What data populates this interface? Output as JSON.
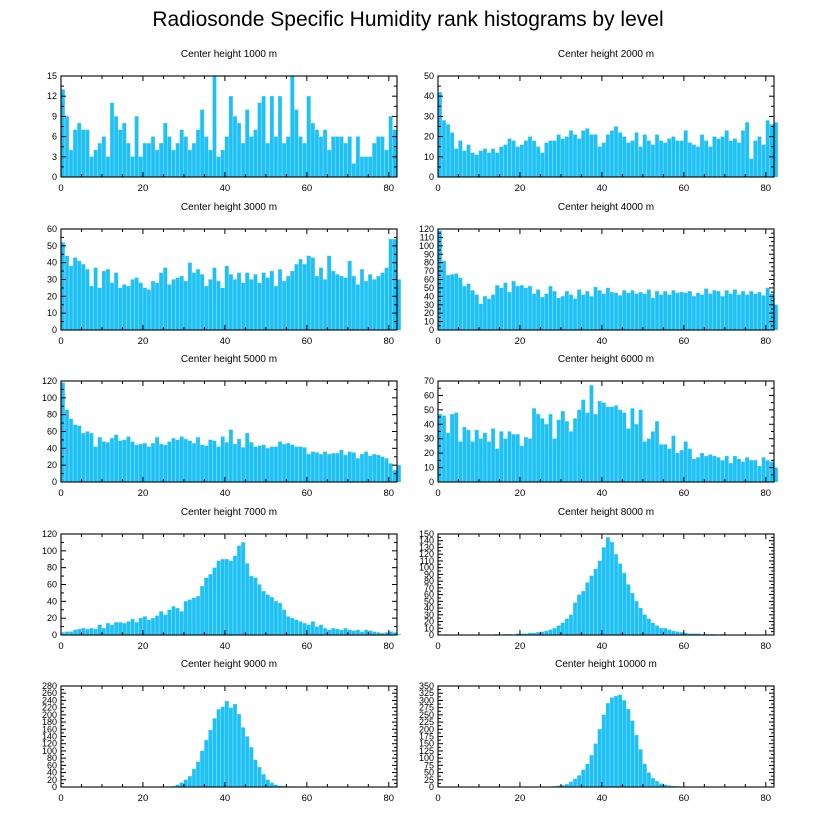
{
  "title": "Radiosonde Specific Humidity rank histograms by level",
  "colors": {
    "bar": "#1ec0f5",
    "bar_edge": "#5fd6fb",
    "axis": "#000000"
  },
  "chart_data": [
    {
      "type": "bar",
      "title": "Center height 1000 m",
      "xlim": [
        0,
        82
      ],
      "ylim": [
        0,
        15
      ],
      "xticks": [
        0,
        20,
        40,
        60,
        80
      ],
      "yticks": [
        0,
        3,
        6,
        9,
        12,
        15
      ],
      "values": [
        13,
        9,
        4,
        7,
        8,
        7,
        7,
        3,
        4,
        5,
        6,
        3,
        11,
        9,
        7,
        8,
        5,
        3,
        9,
        3,
        5,
        5,
        6,
        4,
        5,
        8,
        6,
        4,
        5,
        7,
        6,
        4,
        5,
        7,
        10,
        6,
        4,
        15,
        3,
        4,
        6,
        12,
        9,
        8,
        5,
        10,
        6,
        7,
        11,
        12,
        5,
        12,
        6,
        12,
        5,
        6,
        15,
        10,
        6,
        5,
        12,
        8,
        7,
        6,
        7,
        4,
        6,
        6,
        6,
        5,
        6,
        2,
        6,
        3,
        3,
        3,
        5,
        6,
        6,
        4,
        9,
        7
      ]
    },
    {
      "type": "bar",
      "title": "Center height 2000 m",
      "xlim": [
        0,
        82
      ],
      "ylim": [
        0,
        50
      ],
      "xticks": [
        0,
        20,
        40,
        60,
        80
      ],
      "yticks": [
        0,
        10,
        20,
        30,
        40,
        50
      ],
      "values": [
        42,
        28,
        26,
        22,
        14,
        18,
        13,
        16,
        12,
        11,
        13,
        14,
        12,
        14,
        12,
        15,
        16,
        19,
        18,
        15,
        16,
        18,
        20,
        18,
        15,
        12,
        17,
        18,
        18,
        21,
        19,
        20,
        23,
        21,
        19,
        23,
        24,
        21,
        21,
        15,
        17,
        21,
        23,
        25,
        22,
        20,
        17,
        18,
        22,
        15,
        21,
        18,
        16,
        21,
        18,
        17,
        19,
        20,
        18,
        18,
        23,
        17,
        16,
        15,
        21,
        18,
        15,
        20,
        19,
        20,
        23,
        18,
        19,
        17,
        23,
        27,
        9,
        18,
        20,
        16,
        28,
        26,
        27
      ]
    },
    {
      "type": "bar",
      "title": "Center height 3000 m",
      "xlim": [
        0,
        82
      ],
      "ylim": [
        0,
        60
      ],
      "xticks": [
        0,
        20,
        40,
        60,
        80
      ],
      "yticks": [
        0,
        10,
        20,
        30,
        40,
        50,
        60
      ],
      "values": [
        52,
        44,
        38,
        43,
        41,
        39,
        36,
        26,
        37,
        25,
        35,
        36,
        28,
        34,
        25,
        27,
        26,
        30,
        31,
        28,
        25,
        24,
        29,
        28,
        34,
        37,
        27,
        30,
        31,
        32,
        29,
        40,
        34,
        36,
        33,
        26,
        30,
        37,
        29,
        25,
        38,
        33,
        30,
        34,
        28,
        34,
        30,
        33,
        28,
        34,
        31,
        35,
        26,
        36,
        29,
        32,
        35,
        39,
        42,
        39,
        44,
        43,
        32,
        37,
        30,
        44,
        35,
        33,
        32,
        31,
        41,
        32,
        27,
        36,
        29,
        33,
        30,
        32,
        34,
        37,
        54,
        54,
        30
      ]
    },
    {
      "type": "bar",
      "title": "Center height 4000 m",
      "xlim": [
        0,
        82
      ],
      "ylim": [
        0,
        120
      ],
      "xticks": [
        0,
        20,
        40,
        60,
        80
      ],
      "yticks": [
        0,
        10,
        20,
        30,
        40,
        50,
        60,
        70,
        80,
        90,
        100,
        110,
        120
      ],
      "values": [
        118,
        82,
        65,
        66,
        67,
        62,
        52,
        55,
        47,
        42,
        31,
        40,
        37,
        42,
        53,
        50,
        56,
        45,
        58,
        52,
        53,
        50,
        52,
        43,
        48,
        39,
        43,
        52,
        46,
        38,
        40,
        46,
        42,
        37,
        48,
        42,
        46,
        40,
        51,
        47,
        43,
        50,
        45,
        44,
        41,
        47,
        44,
        47,
        43,
        45,
        43,
        48,
        38,
        46,
        42,
        46,
        42,
        47,
        44,
        45,
        44,
        46,
        40,
        44,
        42,
        49,
        43,
        47,
        46,
        40,
        47,
        43,
        48,
        42,
        46,
        42,
        46,
        43,
        45,
        41,
        50,
        43,
        30
      ]
    },
    {
      "type": "bar",
      "title": "Center height 5000 m",
      "xlim": [
        0,
        82
      ],
      "ylim": [
        0,
        120
      ],
      "xticks": [
        0,
        20,
        40,
        60,
        80
      ],
      "yticks": [
        0,
        20,
        40,
        60,
        80,
        100,
        120
      ],
      "values": [
        118,
        86,
        75,
        68,
        67,
        58,
        60,
        58,
        42,
        53,
        48,
        47,
        52,
        56,
        49,
        50,
        54,
        48,
        44,
        45,
        46,
        42,
        46,
        53,
        45,
        44,
        48,
        52,
        50,
        54,
        51,
        49,
        46,
        53,
        44,
        43,
        50,
        49,
        42,
        54,
        47,
        62,
        45,
        51,
        41,
        58,
        47,
        42,
        43,
        44,
        40,
        42,
        42,
        48,
        45,
        46,
        44,
        42,
        42,
        41,
        33,
        36,
        35,
        33,
        36,
        33,
        34,
        34,
        38,
        32,
        36,
        35,
        28,
        33,
        36,
        31,
        33,
        32,
        30,
        28,
        22,
        14,
        20
      ]
    },
    {
      "type": "bar",
      "title": "Center height 6000 m",
      "xlim": [
        0,
        82
      ],
      "ylim": [
        0,
        70
      ],
      "xticks": [
        0,
        20,
        40,
        60,
        80
      ],
      "yticks": [
        0,
        10,
        20,
        30,
        40,
        50,
        60,
        70
      ],
      "values": [
        47,
        46,
        34,
        47,
        48,
        28,
        38,
        36,
        28,
        36,
        30,
        34,
        28,
        37,
        23,
        35,
        30,
        35,
        33,
        33,
        25,
        31,
        30,
        51,
        47,
        44,
        40,
        47,
        30,
        43,
        49,
        42,
        35,
        44,
        50,
        57,
        48,
        67,
        47,
        56,
        55,
        52,
        52,
        53,
        50,
        48,
        37,
        51,
        40,
        50,
        28,
        30,
        35,
        42,
        26,
        26,
        23,
        32,
        20,
        22,
        28,
        23,
        16,
        17,
        20,
        18,
        19,
        18,
        17,
        15,
        18,
        13,
        18,
        16,
        14,
        17,
        15,
        15,
        11,
        17,
        15,
        14,
        10
      ]
    },
    {
      "type": "bar",
      "title": "Center height 7000 m",
      "xlim": [
        0,
        82
      ],
      "ylim": [
        0,
        120
      ],
      "xticks": [
        0,
        20,
        40,
        60,
        80
      ],
      "yticks": [
        0,
        20,
        40,
        60,
        80,
        100,
        120
      ],
      "values": [
        3,
        4,
        4,
        6,
        7,
        8,
        7,
        8,
        7,
        12,
        8,
        14,
        12,
        15,
        15,
        14,
        16,
        19,
        15,
        20,
        22,
        18,
        20,
        23,
        28,
        24,
        30,
        34,
        32,
        28,
        40,
        42,
        44,
        46,
        58,
        68,
        72,
        80,
        88,
        90,
        90,
        88,
        94,
        106,
        110,
        85,
        70,
        68,
        60,
        52,
        48,
        45,
        40,
        38,
        30,
        22,
        20,
        18,
        16,
        14,
        12,
        16,
        10,
        12,
        8,
        6,
        8,
        7,
        6,
        8,
        6,
        5,
        6,
        4,
        6,
        5,
        4,
        3,
        2,
        3,
        4,
        3,
        1
      ]
    },
    {
      "type": "bar",
      "title": "Center height 8000 m",
      "xlim": [
        0,
        82
      ],
      "ylim": [
        0,
        150
      ],
      "xticks": [
        0,
        20,
        40,
        60,
        80
      ],
      "yticks": [
        0,
        10,
        20,
        30,
        40,
        50,
        60,
        70,
        80,
        90,
        100,
        110,
        120,
        130,
        140,
        150
      ],
      "values": [
        0,
        0,
        0,
        0,
        0,
        0,
        0,
        0,
        0,
        0,
        0,
        0,
        0,
        0,
        1,
        0,
        1,
        1,
        0,
        2,
        2,
        2,
        3,
        3,
        4,
        5,
        6,
        8,
        10,
        14,
        18,
        24,
        30,
        48,
        60,
        65,
        78,
        88,
        98,
        110,
        130,
        145,
        138,
        120,
        106,
        92,
        75,
        62,
        50,
        40,
        30,
        24,
        18,
        14,
        10,
        10,
        8,
        6,
        5,
        4,
        3,
        2,
        2,
        2,
        1,
        1,
        1,
        1,
        0,
        1,
        0,
        0,
        0,
        0,
        0,
        0,
        0,
        0,
        0,
        0,
        0,
        0,
        0
      ]
    },
    {
      "type": "bar",
      "title": "Center height 9000 m",
      "xlim": [
        0,
        82
      ],
      "ylim": [
        0,
        280
      ],
      "xticks": [
        0,
        20,
        40,
        60,
        80
      ],
      "yticks": [
        0,
        20,
        40,
        60,
        80,
        100,
        120,
        140,
        160,
        180,
        200,
        220,
        240,
        260,
        280
      ],
      "values": [
        0,
        0,
        0,
        0,
        0,
        0,
        0,
        0,
        0,
        0,
        0,
        0,
        0,
        0,
        0,
        0,
        0,
        0,
        0,
        0,
        0,
        0,
        0,
        0,
        0,
        0,
        1,
        2,
        6,
        12,
        20,
        30,
        50,
        70,
        100,
        130,
        158,
        190,
        215,
        222,
        238,
        220,
        230,
        202,
        165,
        140,
        110,
        75,
        55,
        35,
        20,
        12,
        6,
        3,
        2,
        1,
        1,
        0,
        0,
        0,
        0,
        0,
        0,
        0,
        0,
        0,
        0,
        0,
        0,
        0,
        0,
        0,
        0,
        0,
        0,
        0,
        0,
        0,
        0,
        0,
        0,
        0,
        0
      ]
    },
    {
      "type": "bar",
      "title": "Center height 10000 m",
      "xlim": [
        0,
        82
      ],
      "ylim": [
        0,
        350
      ],
      "xticks": [
        0,
        20,
        40,
        60,
        80
      ],
      "yticks": [
        0,
        25,
        50,
        75,
        100,
        125,
        150,
        175,
        200,
        225,
        250,
        275,
        300,
        325,
        350
      ],
      "values": [
        0,
        0,
        0,
        0,
        0,
        0,
        0,
        0,
        0,
        0,
        0,
        0,
        0,
        0,
        0,
        0,
        0,
        0,
        0,
        0,
        0,
        0,
        0,
        0,
        0,
        0,
        0,
        1,
        2,
        4,
        6,
        10,
        18,
        28,
        40,
        60,
        80,
        110,
        150,
        200,
        250,
        290,
        310,
        315,
        320,
        300,
        270,
        230,
        180,
        130,
        80,
        50,
        30,
        20,
        12,
        8,
        5,
        3,
        2,
        1,
        1,
        0,
        0,
        0,
        0,
        0,
        0,
        0,
        0,
        0,
        0,
        0,
        0,
        0,
        0,
        0,
        0,
        0,
        0,
        0,
        0,
        0,
        0
      ]
    }
  ]
}
